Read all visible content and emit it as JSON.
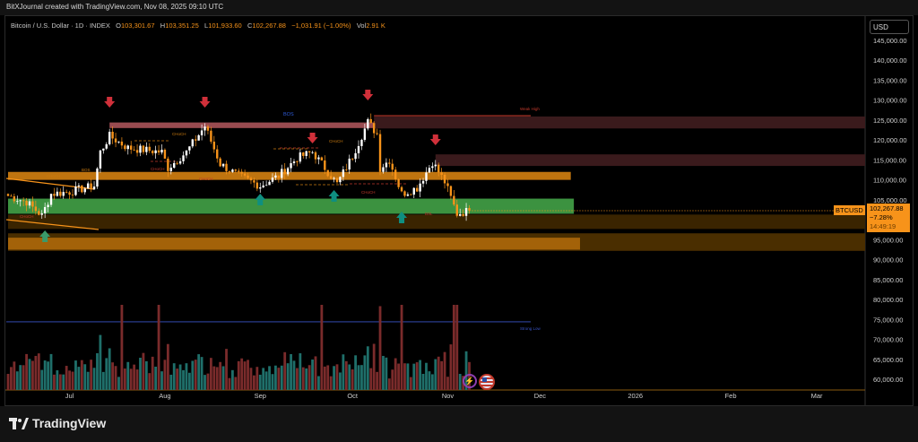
{
  "credit": "BitXJournal created with TradingView.com, Nov 08, 2025 09:10 UTC",
  "legend": {
    "symbol": "Bitcoin / U.S. Dollar · 1D · INDEX",
    "o_label": "O",
    "o": "103,301.67",
    "h_label": "H",
    "h": "103,351.25",
    "l_label": "L",
    "l": "101,933.60",
    "c_label": "C",
    "c": "102,267.88",
    "change": "−1,031.91 (−1.00%)",
    "vol_label": "Vol",
    "vol": "2.91 K"
  },
  "currency": "USD",
  "price_tag": {
    "symbol": "BTCUSD",
    "price": "102,267.88",
    "change": "−7.28%",
    "countdown": "14:49:19"
  },
  "brand": "TradingView",
  "colors": {
    "up": "#ffffff",
    "down": "#f7931a",
    "vol_up": "#1f6f6a",
    "vol_down": "#7a2b2b",
    "accent": "#f7931a"
  },
  "chart_data": {
    "type": "candlestick",
    "y_ticks": [
      145000,
      140000,
      135000,
      130000,
      125000,
      120000,
      115000,
      110000,
      105000,
      95000,
      90000,
      85000,
      80000,
      75000,
      70000,
      65000,
      60000
    ],
    "y_tick_labels": [
      "145,000.00",
      "140,000.00",
      "135,000.00",
      "130,000.00",
      "125,000.00",
      "120,000.00",
      "115,000.00",
      "110,000.00",
      "105,000.00",
      "95,000.00",
      "90,000.00",
      "85,000.00",
      "80,000.00",
      "75,000.00",
      "70,000.00",
      "65,000.00",
      "60,000.00"
    ],
    "ylim": [
      57000,
      149000
    ],
    "x_ticks": [
      {
        "label": "Jul",
        "day": 20
      },
      {
        "label": "Aug",
        "day": 51
      },
      {
        "label": "Sep",
        "day": 82
      },
      {
        "label": "Oct",
        "day": 112
      },
      {
        "label": "Nov",
        "day": 143
      },
      {
        "label": "Dec",
        "day": 173
      },
      {
        "label": "2026",
        "day": 204
      },
      {
        "label": "Feb",
        "day": 235
      },
      {
        "label": "Mar",
        "day": 263
      }
    ],
    "price_path_day_close": [
      [
        0,
        106000
      ],
      [
        6,
        104500
      ],
      [
        11,
        101000
      ],
      [
        14,
        106500
      ],
      [
        20,
        107000
      ],
      [
        28,
        108500
      ],
      [
        30,
        117000
      ],
      [
        33,
        121000
      ],
      [
        39,
        118000
      ],
      [
        50,
        117000
      ],
      [
        52,
        113000
      ],
      [
        58,
        117000
      ],
      [
        64,
        123500
      ],
      [
        69,
        114000
      ],
      [
        75,
        111000
      ],
      [
        82,
        108500
      ],
      [
        88,
        111000
      ],
      [
        94,
        115500
      ],
      [
        99,
        117000
      ],
      [
        103,
        113000
      ],
      [
        107,
        109000
      ],
      [
        112,
        116000
      ],
      [
        117,
        124500
      ],
      [
        120,
        121500
      ],
      [
        121,
        113000
      ],
      [
        124,
        115000
      ],
      [
        128,
        106500
      ],
      [
        133,
        108000
      ],
      [
        138,
        114500
      ],
      [
        142,
        109500
      ],
      [
        146,
        101500
      ],
      [
        150,
        102300
      ]
    ],
    "zones": [
      {
        "name": "supply-zone-upper",
        "from": [
          123000,
          33
        ],
        "to": [
          124400,
          185
        ],
        "color": "#b4585e",
        "opacity": 0.85
      },
      {
        "name": "weak-high-block",
        "from": [
          122900,
          119
        ],
        "to": [
          125900,
          290
        ],
        "color": "#3a1a1c",
        "opacity": 1
      },
      {
        "name": "supply-block-lower",
        "from": [
          113500,
          139
        ],
        "to": [
          116400,
          290
        ],
        "color": "#3a1a1c",
        "opacity": 1
      },
      {
        "name": "resistance-band",
        "from": [
          110000,
          0
        ],
        "to": [
          112000,
          183
        ],
        "color": "#c97a10",
        "opacity": 0.95
      },
      {
        "name": "demand-zone-green",
        "from": [
          101500,
          0
        ],
        "to": [
          105300,
          184
        ],
        "color": "#3f9a43",
        "opacity": 0.95
      },
      {
        "name": "brown-block",
        "from": [
          97700,
          0
        ],
        "to": [
          101300,
          290
        ],
        "color": "#3a2400",
        "opacity": 1
      },
      {
        "name": "bottom-band-dark",
        "from": [
          92200,
          0
        ],
        "to": [
          96600,
          290
        ],
        "color": "#4a2e00",
        "opacity": 1
      },
      {
        "name": "bottom-band",
        "from": [
          92500,
          0
        ],
        "to": [
          95500,
          186
        ],
        "color": "#a8650a",
        "opacity": 0.95
      }
    ],
    "annotations": {
      "bos": "BOS",
      "bos_small": "BOS",
      "choch": "CHoCH",
      "weak_high": "Weak High",
      "strong_low": "Strong Low",
      "bsl": "BSL"
    },
    "weak_high_price": 126100,
    "strong_low_price": 74400,
    "down_arrows_day": [
      33,
      64,
      99,
      117,
      139
    ],
    "up_arrows_day": [
      12,
      82,
      106,
      128
    ]
  }
}
